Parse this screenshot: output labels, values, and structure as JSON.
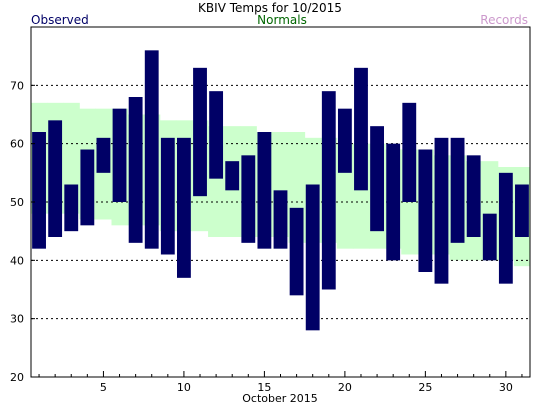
{
  "chart_data": {
    "type": "bar",
    "title": "KBIV Temps for 10/2015",
    "xlabel": "October 2015",
    "ylabel": "",
    "legend": [
      {
        "name": "Observed",
        "color": "#000066",
        "position": "top-left"
      },
      {
        "name": "Normals",
        "color": "#006600",
        "position": "top-center"
      },
      {
        "name": "Records",
        "color": "#cc99cc",
        "position": "top-right"
      }
    ],
    "xlim": [
      0.5,
      31.5
    ],
    "ylim": [
      20,
      80
    ],
    "x_ticks": [
      5,
      10,
      15,
      20,
      25,
      30
    ],
    "y_ticks": [
      20,
      30,
      40,
      50,
      60,
      70
    ],
    "grid": {
      "y_dashed": [
        30,
        40,
        50,
        60,
        70
      ]
    },
    "colors": {
      "observed": "#000066",
      "normals": "#ccffcc",
      "grid": "#000000",
      "background": "#ffffff"
    },
    "days": [
      1,
      2,
      3,
      4,
      5,
      6,
      7,
      8,
      9,
      10,
      11,
      12,
      13,
      14,
      15,
      16,
      17,
      18,
      19,
      20,
      21,
      22,
      23,
      24,
      25,
      26,
      27,
      28,
      29,
      30,
      31
    ],
    "series": [
      {
        "name": "Observed",
        "low": [
          42,
          44,
          45,
          46,
          55,
          50,
          43,
          42,
          41,
          37,
          51,
          54,
          52,
          43,
          42,
          42,
          34,
          28,
          35,
          55,
          52,
          45,
          40,
          50,
          38,
          36,
          43,
          44,
          40,
          36,
          44
        ],
        "high": [
          62,
          64,
          53,
          59,
          61,
          66,
          68,
          76,
          61,
          61,
          73,
          69,
          57,
          58,
          62,
          52,
          49,
          53,
          69,
          66,
          73,
          63,
          60,
          67,
          59,
          61,
          61,
          58,
          48,
          55,
          53
        ]
      },
      {
        "name": "Normals",
        "low": [
          48,
          48,
          48,
          47,
          47,
          46,
          46,
          46,
          45,
          45,
          45,
          44,
          44,
          44,
          44,
          44,
          43,
          43,
          43,
          42,
          42,
          42,
          42,
          41,
          41,
          41,
          40,
          40,
          40,
          40,
          39
        ],
        "high": [
          67,
          67,
          67,
          66,
          66,
          66,
          65,
          65,
          64,
          64,
          64,
          63,
          63,
          63,
          62,
          62,
          62,
          61,
          61,
          60,
          60,
          60,
          59,
          59,
          59,
          58,
          58,
          57,
          57,
          56,
          56
        ]
      }
    ]
  }
}
